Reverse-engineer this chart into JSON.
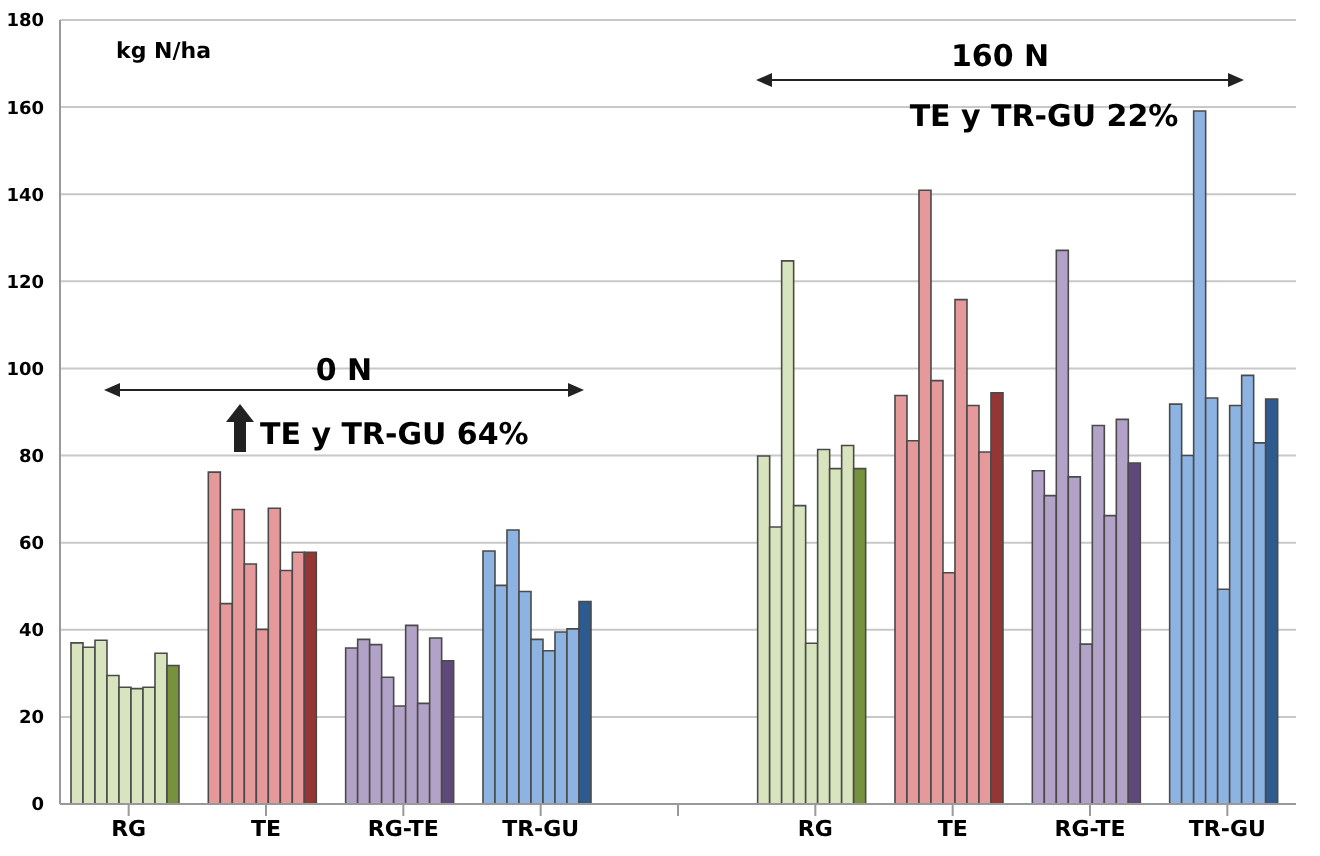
{
  "chart_data": {
    "type": "bar",
    "categories": [
      "RG",
      "TE",
      "RG-TE",
      "TR-GU",
      null,
      "RG",
      "TE",
      "RG-TE",
      "TR-GU"
    ],
    "series": [
      {
        "colors": [
          "#d7e4bd",
          "#e6999a",
          "#b3a2c7",
          "#8db3e2",
          "#d7e4bd",
          "#d7e4bd",
          "#e6999a",
          "#b3a2c7",
          "#8db3e2"
        ],
        "values": [
          37,
          76.2,
          35.8,
          58.1,
          null,
          79.9,
          93.8,
          76.5,
          91.8
        ]
      },
      {
        "colors": [
          "#d7e4bd",
          "#e6999a",
          "#b3a2c7",
          "#8db3e2",
          "#d7e4bd",
          "#d7e4bd",
          "#e6999a",
          "#b3a2c7",
          "#8db3e2"
        ],
        "values": [
          36,
          46,
          37.8,
          50.2,
          null,
          63.6,
          83.4,
          70.8,
          80
        ]
      },
      {
        "colors": [
          "#d7e4bd",
          "#e6999a",
          "#b3a2c7",
          "#8db3e2",
          "#d7e4bd",
          "#d7e4bd",
          "#e6999a",
          "#b3a2c7",
          "#8db3e2"
        ],
        "values": [
          37.6,
          67.6,
          36.6,
          62.9,
          null,
          124.7,
          140.9,
          127.1,
          159.1
        ]
      },
      {
        "colors": [
          "#d7e4bd",
          "#e6999a",
          "#b3a2c7",
          "#8db3e2",
          "#d7e4bd",
          "#d7e4bd",
          "#e6999a",
          "#b3a2c7",
          "#8db3e2"
        ],
        "values": [
          29.5,
          55.1,
          29.1,
          48.8,
          null,
          68.5,
          97.2,
          75.1,
          93.2
        ]
      },
      {
        "colors": [
          "#d7e4bd",
          "#e6999a",
          "#b3a2c7",
          "#8db3e2",
          "#d7e4bd",
          "#d7e4bd",
          "#e6999a",
          "#b3a2c7",
          "#8db3e2"
        ],
        "values": [
          26.8,
          40.1,
          22.5,
          37.8,
          null,
          36.9,
          53.1,
          36.7,
          49.3
        ]
      },
      {
        "colors": [
          "#d7e4bd",
          "#e6999a",
          "#b3a2c7",
          "#8db3e2",
          "#d7e4bd",
          "#d7e4bd",
          "#e6999a",
          "#b3a2c7",
          "#8db3e2"
        ],
        "values": [
          26.5,
          67.9,
          41,
          35.2,
          null,
          81.4,
          115.8,
          86.9,
          91.5
        ]
      },
      {
        "colors": [
          "#d7e4bd",
          "#e6999a",
          "#b3a2c7",
          "#8db3e2",
          "#d7e4bd",
          "#d7e4bd",
          "#e6999a",
          "#b3a2c7",
          "#8db3e2"
        ],
        "values": [
          26.8,
          53.6,
          23.1,
          39.5,
          null,
          77,
          91.5,
          66.2,
          98.4
        ]
      },
      {
        "colors": [
          "#d7e4bd",
          "#e6999a",
          "#b3a2c7",
          "#8db3e2",
          "#d7e4bd",
          "#d7e4bd",
          "#e6999a",
          "#b3a2c7",
          "#8db3e2"
        ],
        "values": [
          34.6,
          57.8,
          38.1,
          40.2,
          null,
          82.3,
          80.8,
          88.3,
          82.9
        ]
      },
      {
        "colors": [
          "#76923c",
          "#943634",
          "#5f497a",
          "#2e5b8f",
          "#76923c",
          "#76923c",
          "#943634",
          "#5f497a",
          "#2e5b8f"
        ],
        "values": [
          31.8,
          57.8,
          32.9,
          46.5,
          null,
          77,
          94.4,
          78.3,
          93
        ]
      }
    ],
    "ylim": [
      0,
      180
    ],
    "yticks": [
      0,
      20,
      40,
      60,
      80,
      100,
      120,
      140,
      160,
      180
    ],
    "grid": "y",
    "legend": false,
    "annotations": [
      "kg N/ha",
      "0 N",
      "TE y TR-GU 64%",
      "160 N",
      "TE y TR-GU 22%"
    ]
  }
}
